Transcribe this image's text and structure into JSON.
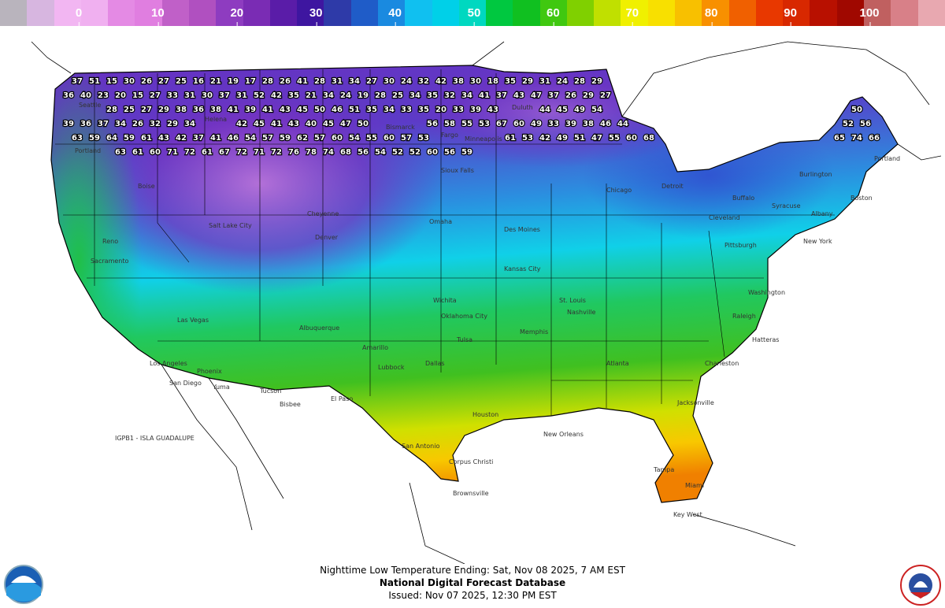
{
  "legend": {
    "colors": [
      "#b9b4bd",
      "#d7b6e0",
      "#f2b6f2",
      "#f0b0f0",
      "#e48ae4",
      "#e07ee0",
      "#c060c8",
      "#b050c0",
      "#8e3cc0",
      "#7a2cb4",
      "#5a1ca8",
      "#3e16a0",
      "#2e3aa8",
      "#1f5cc8",
      "#1a8ae0",
      "#10c0f0",
      "#00d0e8",
      "#00d8c0",
      "#00c840",
      "#10c020",
      "#40c810",
      "#80d000",
      "#c0e000",
      "#f0f000",
      "#f8e000",
      "#f8c000",
      "#f89000",
      "#f06000",
      "#e83800",
      "#d82800",
      "#b81000",
      "#a00800",
      "#c06060",
      "#d88088",
      "#e8a8b0"
    ],
    "ticks": [
      "0",
      "10",
      "20",
      "30",
      "40",
      "50",
      "60",
      "70",
      "80",
      "90",
      "100"
    ]
  },
  "map": {
    "temps": [
      "37",
      "51",
      "15",
      "30",
      "26",
      "27",
      "25",
      "16",
      "21",
      "19",
      "17",
      "28",
      "26",
      "41",
      "28",
      "31",
      "34",
      "27",
      "30",
      "24",
      "32",
      "42",
      "38",
      "30",
      "18",
      "35",
      "29",
      "31",
      "24",
      "28",
      "29",
      "36",
      "40",
      "23",
      "20",
      "15",
      "27",
      "33",
      "31",
      "30",
      "37",
      "31",
      "52",
      "42",
      "35",
      "21",
      "34",
      "24",
      "19",
      "28",
      "25",
      "34",
      "35",
      "32",
      "34",
      "41",
      "37",
      "43",
      "47",
      "37",
      "26",
      "29",
      "27",
      "28",
      "25",
      "27",
      "29",
      "38",
      "36",
      "38",
      "41",
      "39",
      "41",
      "43",
      "45",
      "50",
      "46",
      "51",
      "35",
      "34",
      "33",
      "35",
      "20",
      "33",
      "39",
      "43",
      "44",
      "45",
      "49",
      "54",
      "50",
      "39",
      "36",
      "37",
      "34",
      "26",
      "32",
      "29",
      "34",
      "42",
      "45",
      "41",
      "43",
      "40",
      "45",
      "47",
      "50",
      "56",
      "58",
      "55",
      "53",
      "67",
      "60",
      "49",
      "33",
      "39",
      "38",
      "46",
      "44",
      "52",
      "56",
      "63",
      "59",
      "64",
      "59",
      "61",
      "43",
      "42",
      "37",
      "41",
      "46",
      "54",
      "57",
      "59",
      "62",
      "57",
      "60",
      "54",
      "55",
      "60",
      "57",
      "53",
      "61",
      "53",
      "42",
      "49",
      "51",
      "47",
      "55",
      "60",
      "68",
      "65",
      "74",
      "66",
      "63",
      "61",
      "60",
      "71",
      "72",
      "61",
      "67",
      "72",
      "71",
      "72",
      "76",
      "78",
      "74",
      "68",
      "56",
      "54",
      "52",
      "52",
      "60",
      "56",
      "59"
    ],
    "cities": [
      "Seattle",
      "Portland",
      "Boise",
      "Helena",
      "Salt Lake City",
      "Denver",
      "Cheyenne",
      "Omaha",
      "Kansas City",
      "Chicago",
      "Detroit",
      "Cleveland",
      "Pittsburgh",
      "New York",
      "Boston",
      "Washington",
      "Atlanta",
      "Nashville",
      "Memphis",
      "Dallas",
      "Houston",
      "San Antonio",
      "New Orleans",
      "Tampa",
      "Miami",
      "Key West",
      "Phoenix",
      "Tucson",
      "Los Angeles",
      "San Diego",
      "Las Vegas",
      "Albuquerque",
      "El Paso",
      "Brownsville",
      "Corpus Christi",
      "Jacksonville",
      "Charleston",
      "Raleigh",
      "Hatteras",
      "Minneapolis",
      "Duluth",
      "Bismarck",
      "Fargo",
      "Sioux Falls",
      "Des Moines",
      "St. Louis",
      "Oklahoma City",
      "Tulsa",
      "Wichita",
      "Amarillo",
      "Lubbock",
      "Reno",
      "Sacramento",
      "Yuma",
      "Bisbee",
      "Portland",
      "Burlington",
      "Albany",
      "Syracuse",
      "Buffalo"
    ],
    "island_label": "IGPB1 - ISLA GUADALUPE"
  },
  "footer": {
    "line1": "Nighttime Low Temperature Ending: Sat, Nov 08 2025, 7 AM EST",
    "line2": "National Digital Forecast Database",
    "line3": "Issued: Nov 07 2025, 12:30 PM EST"
  },
  "logos": {
    "left": "NOAA",
    "right": "NATIONAL WEATHER SERVICE"
  }
}
